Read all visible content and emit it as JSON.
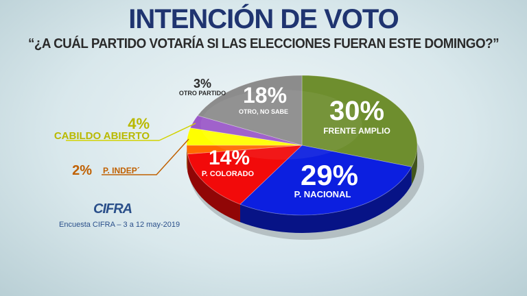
{
  "title": "INTENCIÓN DE VOTO",
  "subtitle": "“¿A CUÁL PARTIDO VOTARÍA SI LAS ELECCIONES FUERAN ESTE DOMINGO?”",
  "logo": "CIFRA",
  "source": "Encuesta CIFRA – 3 a 12 may-2019",
  "chart_data": {
    "type": "pie",
    "title": "INTENCIÓN DE VOTO",
    "slices": [
      {
        "label": "FRENTE AMPLIO",
        "value": 30,
        "value_label": "30%",
        "color": "#6e8e2e"
      },
      {
        "label": "P. NACIONAL",
        "value": 29,
        "value_label": "29%",
        "color": "#0c1fe0"
      },
      {
        "label": "P. COLORADO",
        "value": 14,
        "value_label": "14%",
        "color": "#f20a0a"
      },
      {
        "label": "P. INDEP´",
        "value": 2,
        "value_label": "2%",
        "color": "#ff6a00"
      },
      {
        "label": "CABILDO ABIERTO",
        "value": 4,
        "value_label": "4%",
        "color": "#ffff00"
      },
      {
        "label": "OTRO PARTIDO",
        "value": 3,
        "value_label": "3%",
        "color": "#9b59c8"
      },
      {
        "label": "OTRO, NO SABE",
        "value": 18,
        "value_label": "18%",
        "color": "#8c8c8c"
      }
    ]
  }
}
